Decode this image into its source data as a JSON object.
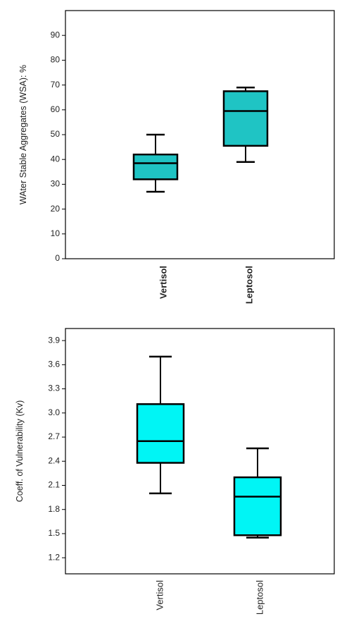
{
  "chart_data": [
    {
      "type": "box",
      "ylabel": "WAter Stable Aggregates (WSA): %",
      "ylim": [
        0,
        100
      ],
      "yticks": [
        0,
        10,
        20,
        30,
        40,
        50,
        60,
        70,
        80,
        90
      ],
      "tick_format_decimals": 0,
      "box_color": "#1fc4c4",
      "categories": [
        "Vertisol",
        "Leptosol"
      ],
      "boxes": [
        {
          "category": "Vertisol",
          "min": 27,
          "q1": 32,
          "median": 38.5,
          "q3": 42,
          "max": 50
        },
        {
          "category": "Leptosol",
          "min": 39,
          "q1": 45.5,
          "median": 59.5,
          "q3": 67.5,
          "max": 69
        }
      ]
    },
    {
      "type": "box",
      "ylabel": "Coeff. of Vulnerability (Kv)",
      "ylim": [
        1.0,
        4.05
      ],
      "yticks": [
        1.2,
        1.5,
        1.8,
        2.1,
        2.4,
        2.7,
        3.0,
        3.3,
        3.6,
        3.9
      ],
      "tick_format_decimals": 1,
      "box_color": "#00f5f5",
      "categories": [
        "Vertisol",
        "Leptosol"
      ],
      "boxes": [
        {
          "category": "Vertisol",
          "min": 2.0,
          "q1": 2.38,
          "median": 2.65,
          "q3": 3.11,
          "max": 3.7
        },
        {
          "category": "Leptosol",
          "min": 1.45,
          "q1": 1.48,
          "median": 1.96,
          "q3": 2.2,
          "max": 2.56
        }
      ]
    }
  ]
}
